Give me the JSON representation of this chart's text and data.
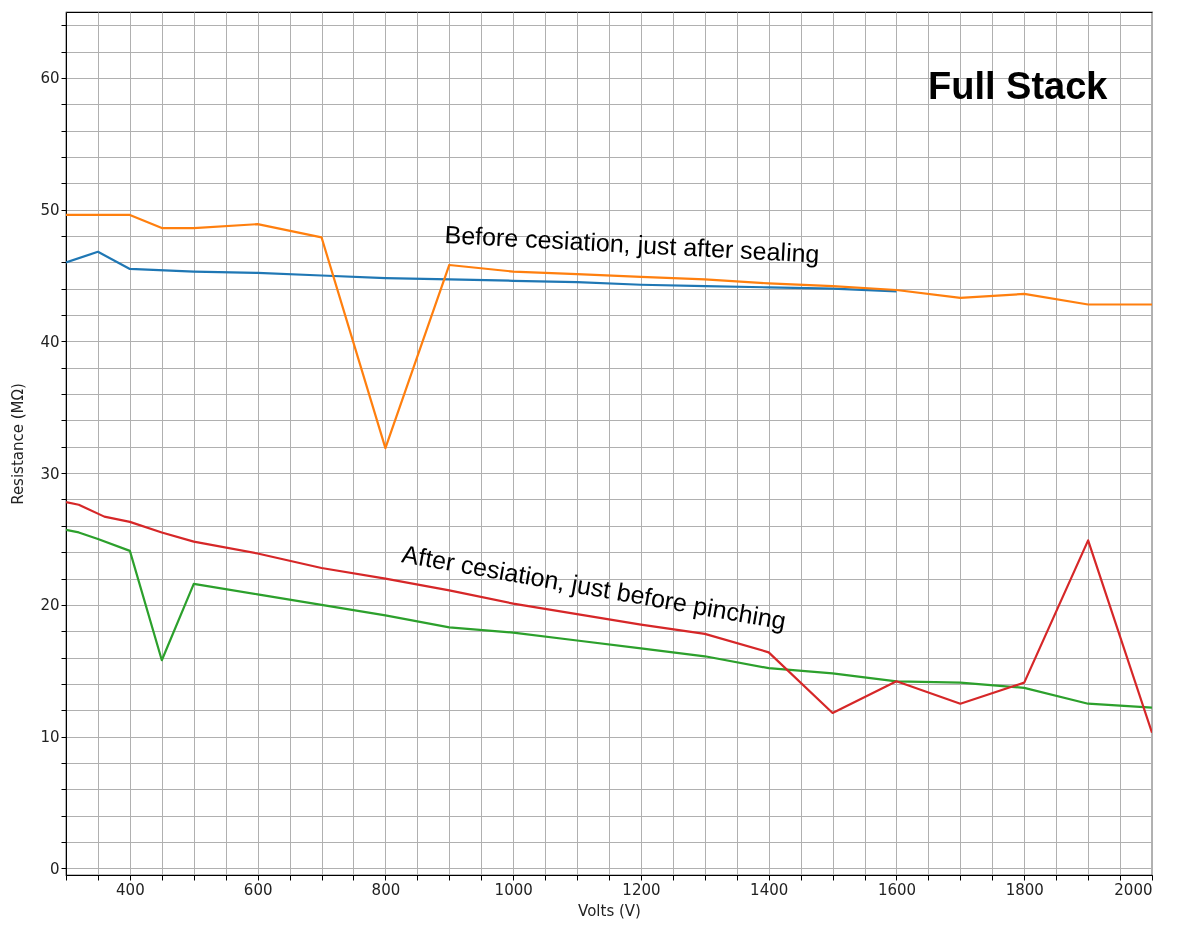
{
  "chart_data": {
    "type": "line",
    "title": "Full Stack",
    "xlabel": "Volts (V)",
    "ylabel": "Resistance (MΩ)",
    "xlim": [
      300,
      2000
    ],
    "ylim": [
      -0.5,
      65
    ],
    "xticks": [
      {
        "value": 300,
        "label": null
      },
      {
        "value": 350,
        "label": null
      },
      400,
      {
        "value": 450,
        "label": null
      },
      {
        "value": 500,
        "label": null
      },
      {
        "value": 550,
        "label": null
      },
      600,
      {
        "value": 650,
        "label": null
      },
      {
        "value": 700,
        "label": null
      },
      {
        "value": 750,
        "label": null
      },
      800,
      {
        "value": 850,
        "label": null
      },
      {
        "value": 900,
        "label": null
      },
      {
        "value": 950,
        "label": null
      },
      1000,
      {
        "value": 1050,
        "label": null
      },
      {
        "value": 1100,
        "label": null
      },
      {
        "value": 1150,
        "label": null
      },
      1200,
      {
        "value": 1250,
        "label": null
      },
      {
        "value": 1300,
        "label": null
      },
      {
        "value": 1350,
        "label": null
      },
      1400,
      {
        "value": 1450,
        "label": null
      },
      {
        "value": 1500,
        "label": null
      },
      {
        "value": 1550,
        "label": null
      },
      1600,
      {
        "value": 1650,
        "label": null
      },
      {
        "value": 1700,
        "label": null
      },
      {
        "value": 1750,
        "label": null
      },
      1800,
      {
        "value": 1850,
        "label": null
      },
      {
        "value": 1900,
        "label": null
      },
      {
        "value": 1950,
        "label": null
      },
      2000
    ],
    "yticks": [
      0,
      {
        "value": 2,
        "label": null
      },
      {
        "value": 4,
        "label": null
      },
      {
        "value": 6,
        "label": null
      },
      {
        "value": 8,
        "label": null
      },
      10,
      {
        "value": 12,
        "label": null
      },
      {
        "value": 14,
        "label": null
      },
      {
        "value": 16,
        "label": null
      },
      {
        "value": 18,
        "label": null
      },
      20,
      {
        "value": 22,
        "label": null
      },
      {
        "value": 24,
        "label": null
      },
      {
        "value": 26,
        "label": null
      },
      {
        "value": 28,
        "label": null
      },
      30,
      {
        "value": 32,
        "label": null
      },
      {
        "value": 34,
        "label": null
      },
      {
        "value": 36,
        "label": null
      },
      {
        "value": 38,
        "label": null
      },
      40,
      {
        "value": 42,
        "label": null
      },
      {
        "value": 44,
        "label": null
      },
      {
        "value": 46,
        "label": null
      },
      {
        "value": 48,
        "label": null
      },
      50,
      {
        "value": 52,
        "label": null
      },
      {
        "value": 54,
        "label": null
      },
      {
        "value": 56,
        "label": null
      },
      {
        "value": 58,
        "label": null
      },
      60,
      {
        "value": 62,
        "label": null
      },
      {
        "value": 64,
        "label": null
      }
    ],
    "grid": true,
    "series": [
      {
        "color": "#1f77b4",
        "x": [
          300,
          350,
          400,
          500,
          600,
          700,
          800,
          900,
          1000,
          1100,
          1200,
          1300,
          1400,
          1500,
          1600
        ],
        "values": [
          46.0,
          46.8,
          45.5,
          45.3,
          45.2,
          45.0,
          44.8,
          44.7,
          44.6,
          44.5,
          44.3,
          44.2,
          44.1,
          44.0,
          43.8
        ]
      },
      {
        "color": "#ff7f0e",
        "x": [
          300,
          350,
          400,
          450,
          500,
          600,
          700,
          800,
          900,
          1000,
          1100,
          1200,
          1300,
          1400,
          1500,
          1600,
          1700,
          1800,
          1900,
          2000
        ],
        "values": [
          49.6,
          49.6,
          49.6,
          48.6,
          48.6,
          48.9,
          47.9,
          31.9,
          45.8,
          45.3,
          45.1,
          44.9,
          44.7,
          44.4,
          44.2,
          43.9,
          43.3,
          43.6,
          42.8,
          42.8
        ]
      },
      {
        "color": "#2ca02c",
        "x": [
          300,
          320,
          350,
          400,
          450,
          500,
          600,
          700,
          800,
          900,
          1000,
          1100,
          1200,
          1300,
          1400,
          1500,
          1600,
          1700,
          1800,
          1900,
          2000
        ],
        "values": [
          25.7,
          25.5,
          25.0,
          24.1,
          15.8,
          21.6,
          20.8,
          20.0,
          19.2,
          18.3,
          17.9,
          17.3,
          16.7,
          16.1,
          15.2,
          14.8,
          14.2,
          14.1,
          13.7,
          12.5,
          12.2
        ]
      },
      {
        "color": "#d62728",
        "x": [
          300,
          320,
          360,
          400,
          450,
          500,
          600,
          700,
          800,
          900,
          1000,
          1100,
          1200,
          1300,
          1400,
          1500,
          1600,
          1700,
          1800,
          1900,
          2000
        ],
        "values": [
          27.8,
          27.6,
          26.7,
          26.3,
          25.5,
          24.8,
          23.9,
          22.8,
          22.0,
          21.1,
          20.1,
          19.3,
          18.5,
          17.8,
          16.4,
          11.8,
          14.2,
          12.5,
          14.1,
          24.9,
          10.3
        ]
      }
    ],
    "annotations": [
      "Before cesiation, just after sealing",
      "After cesiation, just before pinching"
    ]
  }
}
